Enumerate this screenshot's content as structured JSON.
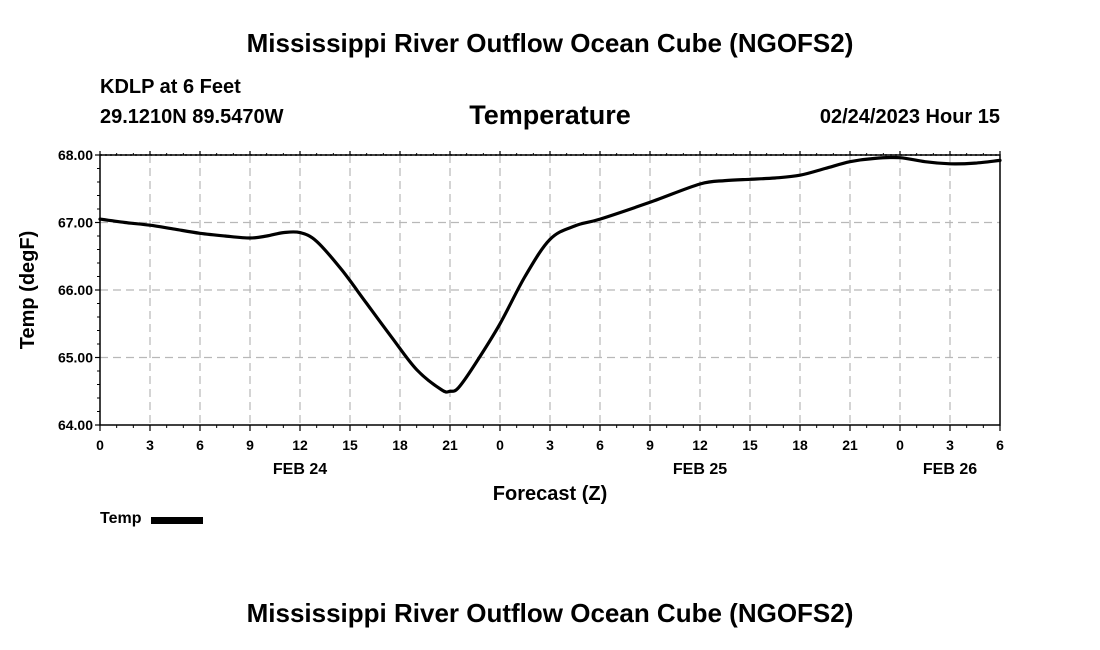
{
  "header": {
    "title": "Mississippi River Outflow Ocean Cube (NGOFS2)",
    "station": "KDLP at 6 Feet",
    "coords": "29.1210N  89.5470W",
    "chart_title": "Temperature",
    "timestamp": "02/24/2023 Hour 15"
  },
  "footer": {
    "title": "Mississippi River Outflow Ocean Cube (NGOFS2)"
  },
  "legend": {
    "label": "Temp",
    "color": "#000000"
  },
  "chart_data": {
    "type": "line",
    "title": "Temperature",
    "xlabel": "Forecast (Z)",
    "ylabel": "Temp (degF)",
    "xlim": [
      0,
      54
    ],
    "ylim": [
      64.0,
      68.0
    ],
    "yticks": [
      "64.00",
      "65.00",
      "66.00",
      "67.00",
      "68.00"
    ],
    "xticks": [
      "0",
      "3",
      "6",
      "9",
      "12",
      "15",
      "18",
      "21",
      "0",
      "3",
      "6",
      "9",
      "12",
      "15",
      "18",
      "21",
      "0",
      "3",
      "6"
    ],
    "date_labels": [
      {
        "label": "FEB 24",
        "hour": 12
      },
      {
        "label": "FEB 25",
        "hour": 36
      },
      {
        "label": "FEB 26",
        "hour": 51
      }
    ],
    "grid": true,
    "series": [
      {
        "name": "Temp",
        "x": [
          0,
          1.5,
          3,
          4.5,
          6,
          7.5,
          9,
          10,
          11,
          12,
          13,
          14.5,
          16,
          17.5,
          19,
          20.5,
          21,
          21.5,
          22.5,
          24,
          25.5,
          27,
          28.5,
          30,
          33,
          36,
          37.5,
          39,
          40.5,
          42,
          43.5,
          45,
          46.5,
          48,
          49.5,
          51,
          52.5,
          54
        ],
        "values": [
          67.05,
          67.0,
          66.96,
          66.9,
          66.84,
          66.8,
          66.77,
          66.8,
          66.85,
          66.85,
          66.72,
          66.3,
          65.8,
          65.3,
          64.82,
          64.52,
          64.5,
          64.55,
          64.9,
          65.5,
          66.2,
          66.75,
          66.95,
          67.05,
          67.3,
          67.57,
          67.62,
          67.64,
          67.66,
          67.7,
          67.8,
          67.9,
          67.95,
          67.96,
          67.9,
          67.87,
          67.88,
          67.92
        ]
      }
    ]
  }
}
